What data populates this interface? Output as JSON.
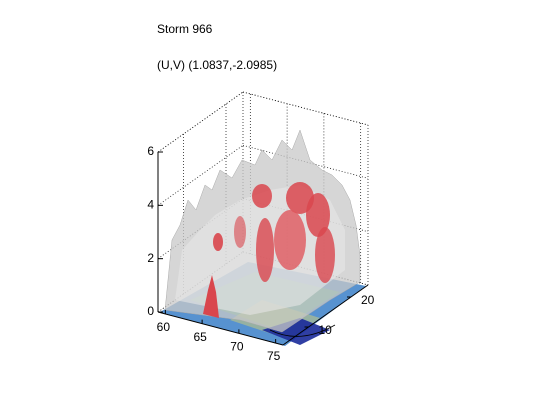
{
  "chart_data": {
    "type": "isosurface3d",
    "title": "Storm 966",
    "subtitle": "(U,V) (1.0837,-2.0985)",
    "xlim": [
      59,
      76
    ],
    "ylim": [
      4,
      24
    ],
    "zlim": [
      0,
      6
    ],
    "xticks": [
      60,
      65,
      70,
      75
    ],
    "yticks": [
      10,
      20
    ],
    "zticks": [
      0,
      2,
      4,
      6
    ],
    "grid": true
  }
}
